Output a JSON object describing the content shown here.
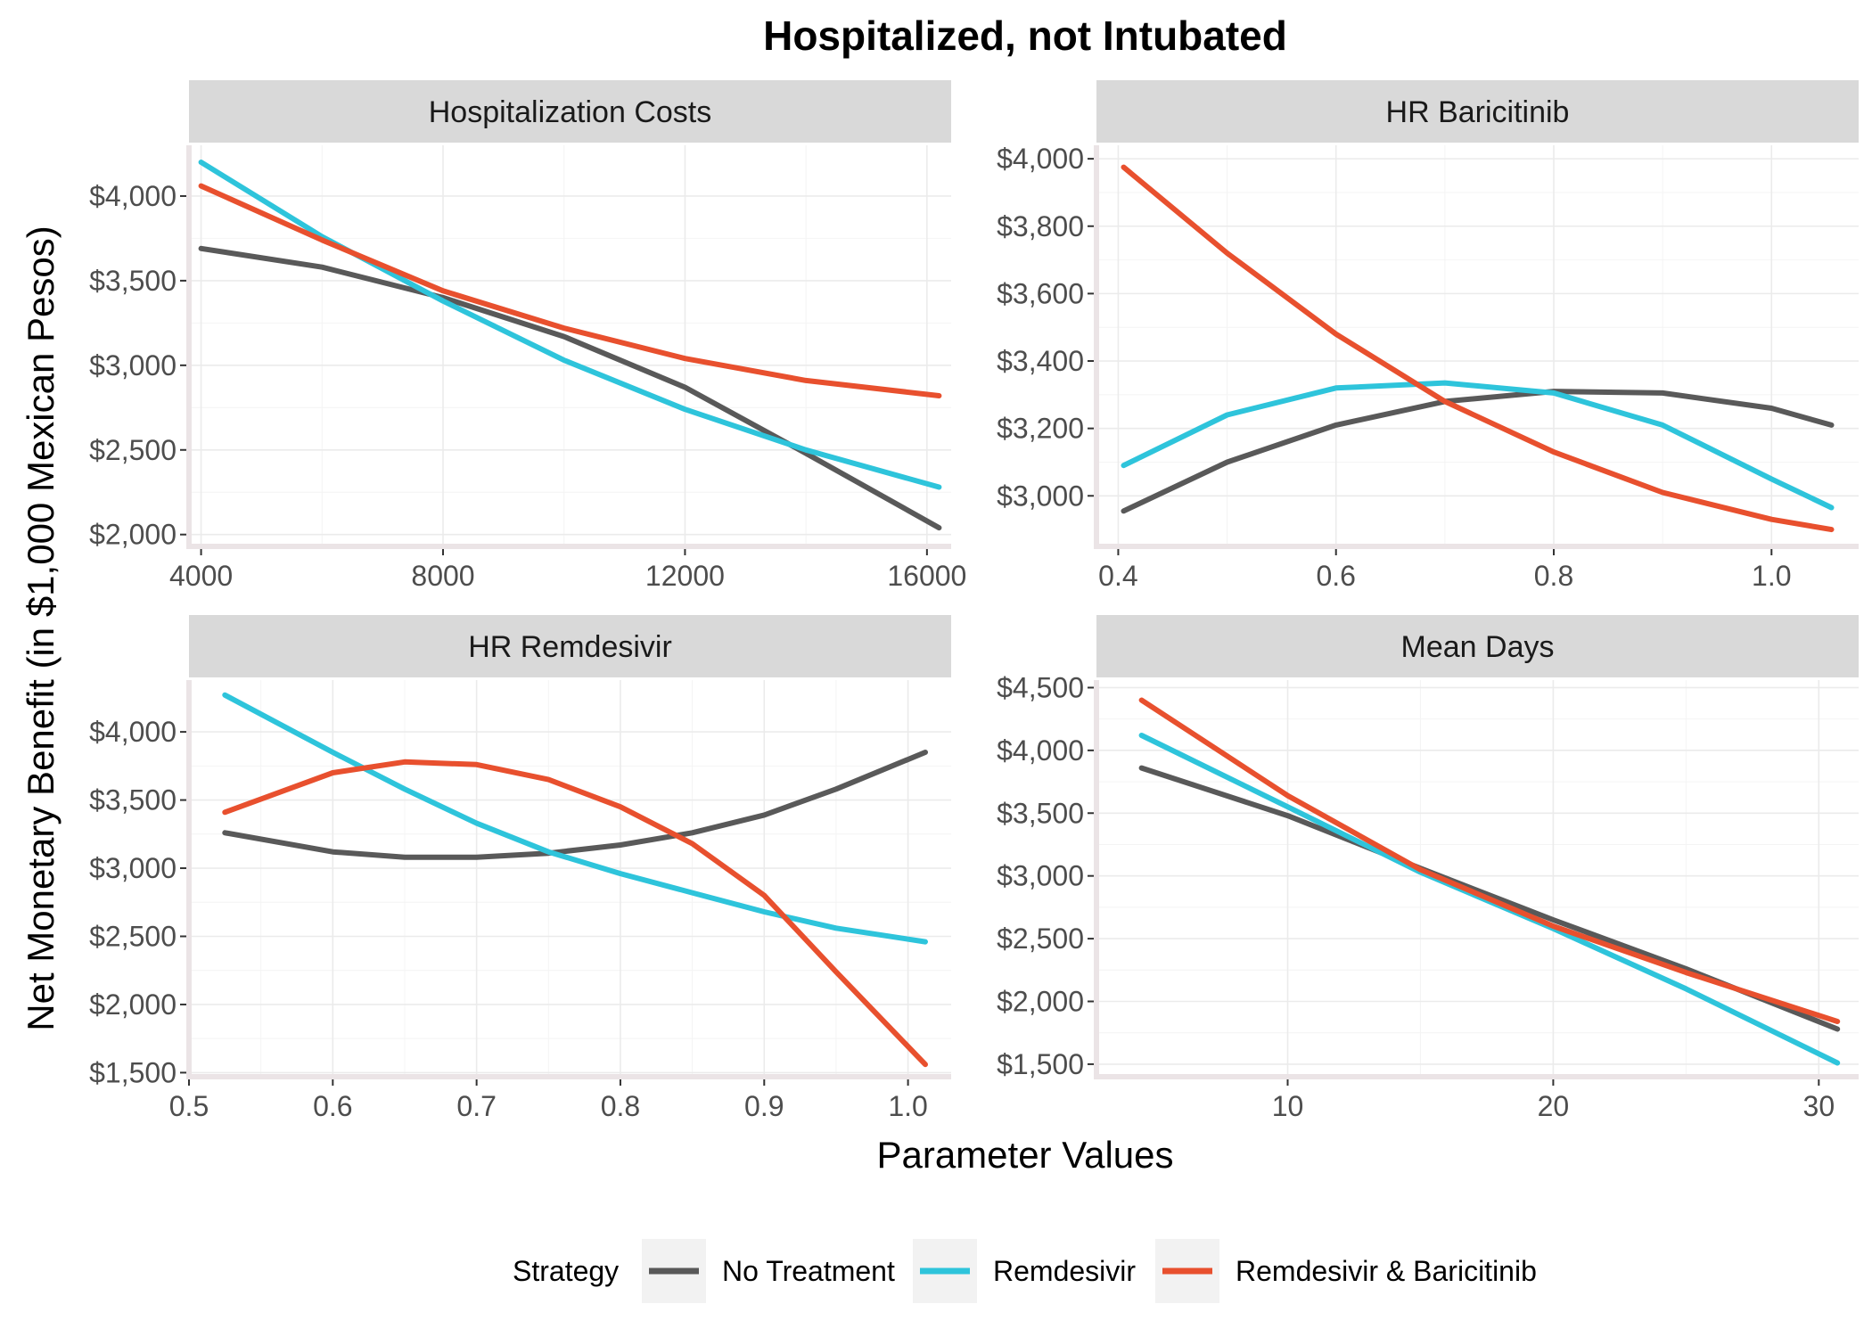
{
  "title": "Hospitalized, not Intubated",
  "xlabel": "Parameter Values",
  "ylabel": "Net Monetary Benefit (in $1,000 Mexican Pesos)",
  "legend": {
    "title": "Strategy",
    "position": "bottom",
    "items": [
      {
        "name": "No Treatment",
        "color": "#595959"
      },
      {
        "name": "Remdesivir",
        "color": "#2ec4db"
      },
      {
        "name": "Remdesivir & Baricitinib",
        "color": "#e8502e"
      }
    ]
  },
  "chart_data": [
    {
      "type": "line",
      "panel": "Hospitalization Costs",
      "xlim": [
        3800,
        16400
      ],
      "ylim": [
        1930,
        4300
      ],
      "xticks": [
        4000,
        8000,
        12000,
        16000
      ],
      "xtick_labels": [
        "4000",
        "8000",
        "12000",
        "16000"
      ],
      "yticks": [
        2000,
        2500,
        3000,
        3500,
        4000
      ],
      "ytick_labels": [
        "$2,000",
        "$2,500",
        "$3,000",
        "$3,500",
        "$4,000"
      ],
      "x": [
        4000,
        6000,
        8000,
        10000,
        12000,
        14000,
        16200
      ],
      "series": [
        {
          "name": "No Treatment",
          "values": [
            3690,
            3580,
            3400,
            3170,
            2870,
            2480,
            2040
          ]
        },
        {
          "name": "Remdesivir",
          "values": [
            4200,
            3760,
            3380,
            3030,
            2740,
            2500,
            2280
          ]
        },
        {
          "name": "Remdesivir & Baricitinib",
          "values": [
            4060,
            3740,
            3440,
            3220,
            3040,
            2910,
            2820
          ]
        }
      ]
    },
    {
      "type": "line",
      "panel": "HR Baricitinib",
      "xlim": [
        0.38,
        1.08
      ],
      "ylim": [
        2850,
        4040
      ],
      "xticks": [
        0.4,
        0.6,
        0.8,
        1.0
      ],
      "xtick_labels": [
        "0.4",
        "0.6",
        "0.8",
        "1.0"
      ],
      "yticks": [
        3000,
        3200,
        3400,
        3600,
        3800,
        4000
      ],
      "ytick_labels": [
        "$3,000",
        "$3,200",
        "$3,400",
        "$3,600",
        "$3,800",
        "$4,000"
      ],
      "x": [
        0.405,
        0.5,
        0.6,
        0.7,
        0.8,
        0.9,
        1.0,
        1.055
      ],
      "series": [
        {
          "name": "No Treatment",
          "values": [
            2955,
            3100,
            3210,
            3280,
            3310,
            3305,
            3260,
            3210
          ]
        },
        {
          "name": "Remdesivir",
          "values": [
            3090,
            3240,
            3320,
            3335,
            3305,
            3210,
            3050,
            2965
          ]
        },
        {
          "name": "Remdesivir & Baricitinib",
          "values": [
            3975,
            3720,
            3480,
            3280,
            3130,
            3010,
            2930,
            2900
          ]
        }
      ]
    },
    {
      "type": "line",
      "panel": "HR Remdesivir",
      "xlim": [
        0.5,
        1.03
      ],
      "ylim": [
        1470,
        4380
      ],
      "xticks": [
        0.5,
        0.6,
        0.7,
        0.8,
        0.9,
        1.0
      ],
      "xtick_labels": [
        "0.5",
        "0.6",
        "0.7",
        "0.8",
        "0.9",
        "1.0"
      ],
      "yticks": [
        1500,
        2000,
        2500,
        3000,
        3500,
        4000
      ],
      "ytick_labels": [
        "$1,500",
        "$2,000",
        "$2,500",
        "$3,000",
        "$3,500",
        "$4,000"
      ],
      "x": [
        0.525,
        0.6,
        0.65,
        0.7,
        0.75,
        0.8,
        0.85,
        0.9,
        0.95,
        1.012
      ],
      "series": [
        {
          "name": "No Treatment",
          "values": [
            3260,
            3120,
            3080,
            3080,
            3110,
            3170,
            3260,
            3390,
            3580,
            3850
          ]
        },
        {
          "name": "Remdesivir",
          "values": [
            4270,
            3850,
            3580,
            3330,
            3120,
            2960,
            2820,
            2680,
            2560,
            2460
          ]
        },
        {
          "name": "Remdesivir & Baricitinib",
          "values": [
            3410,
            3700,
            3780,
            3760,
            3650,
            3450,
            3180,
            2800,
            2240,
            1560
          ]
        }
      ]
    },
    {
      "type": "line",
      "panel": "Mean Days",
      "xlim": [
        2.8,
        31.5
      ],
      "ylim": [
        1400,
        4560
      ],
      "xticks": [
        10,
        20,
        30
      ],
      "xtick_labels": [
        "10",
        "20",
        "30"
      ],
      "yticks": [
        1500,
        2000,
        2500,
        3000,
        3500,
        4000,
        4500
      ],
      "ytick_labels": [
        "$1,500",
        "$2,000",
        "$2,500",
        "$3,000",
        "$3,500",
        "$4,000",
        "$4,500"
      ],
      "x": [
        4.5,
        10,
        15,
        20,
        25,
        30.7
      ],
      "series": [
        {
          "name": "No Treatment",
          "values": [
            3860,
            3480,
            3060,
            2650,
            2260,
            1780
          ]
        },
        {
          "name": "Remdesivir",
          "values": [
            4120,
            3550,
            3030,
            2580,
            2100,
            1510
          ]
        },
        {
          "name": "Remdesivir & Baricitinib",
          "values": [
            4400,
            3640,
            3050,
            2600,
            2230,
            1840
          ]
        }
      ]
    }
  ]
}
